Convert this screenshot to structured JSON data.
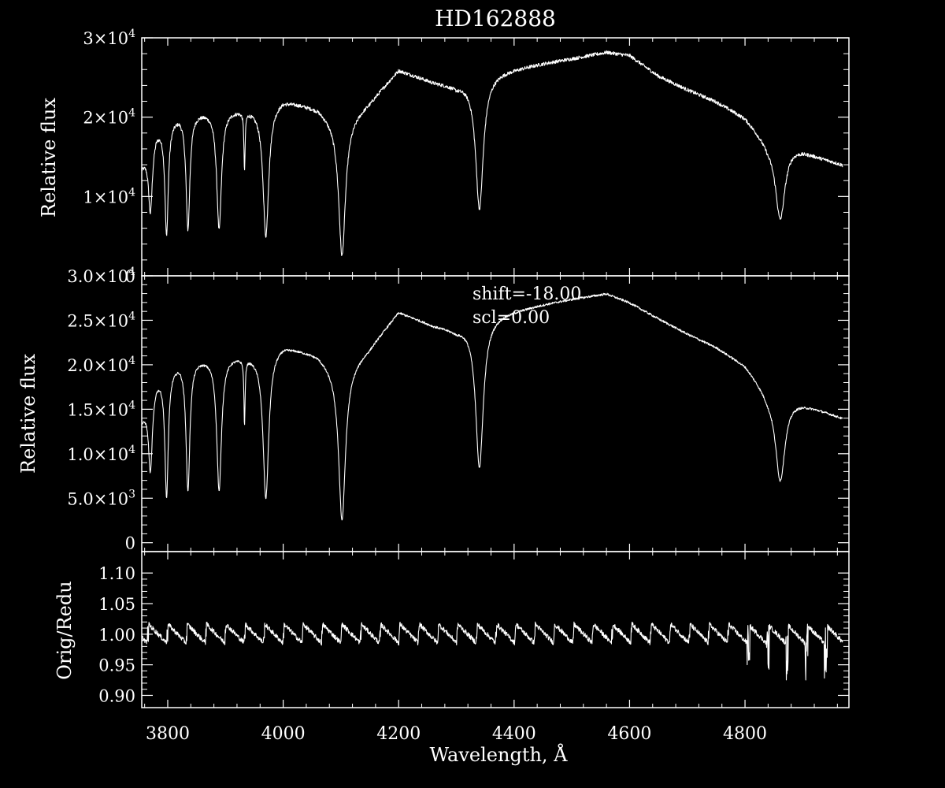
{
  "figure_title": "HD162888",
  "colors": {
    "background": "#000000",
    "foreground": "#ffffff"
  },
  "xaxis": {
    "label": "Wavelength, Å",
    "range": [
      3755,
      4980
    ],
    "ticks": [
      3800,
      4000,
      4200,
      4400,
      4600,
      4800
    ],
    "tick_labels": [
      "3800",
      "4000",
      "4200",
      "4400",
      "4600",
      "4800"
    ]
  },
  "chart_data": [
    {
      "type": "line",
      "ylabel": "Relative flux",
      "ylim": [
        0,
        30000
      ],
      "yticks": [
        {
          "v": 0,
          "m": "0",
          "e": ""
        },
        {
          "v": 10000,
          "m": "1×10",
          "e": "4"
        },
        {
          "v": 20000,
          "m": "2×10",
          "e": "4"
        },
        {
          "v": 30000,
          "m": "3×10",
          "e": "4"
        }
      ],
      "annotations": [],
      "spectrum": {
        "continuum": [
          [
            3755,
            14000
          ],
          [
            3780,
            18500
          ],
          [
            3820,
            20500
          ],
          [
            3880,
            21000
          ],
          [
            3950,
            21200
          ],
          [
            4000,
            22300
          ],
          [
            4060,
            21200
          ],
          [
            4100,
            19000
          ],
          [
            4150,
            22000
          ],
          [
            4200,
            26000
          ],
          [
            4260,
            24500
          ],
          [
            4300,
            24000
          ],
          [
            4340,
            25000
          ],
          [
            4380,
            25800
          ],
          [
            4450,
            26800
          ],
          [
            4500,
            27400
          ],
          [
            4560,
            28200
          ],
          [
            4600,
            27800
          ],
          [
            4650,
            25200
          ],
          [
            4700,
            23500
          ],
          [
            4750,
            22000
          ],
          [
            4800,
            20000
          ],
          [
            4840,
            16800
          ],
          [
            4880,
            16500
          ],
          [
            4930,
            15000
          ],
          [
            4970,
            14000
          ]
        ],
        "lines": [
          [
            3770,
            8500,
            4
          ],
          [
            3798,
            14000,
            3.5
          ],
          [
            3835,
            14500,
            4
          ],
          [
            3889,
            15000,
            5
          ],
          [
            3933,
            7500,
            1.2
          ],
          [
            3970,
            16500,
            6
          ],
          [
            4102,
            16500,
            7
          ],
          [
            4340,
            16500,
            8
          ],
          [
            4861,
            9500,
            10
          ]
        ],
        "noise": 220
      }
    },
    {
      "type": "line",
      "ylabel": "Relative flux",
      "ylim": [
        -1000,
        30000
      ],
      "yticks": [
        {
          "v": 0,
          "m": "0",
          "e": ""
        },
        {
          "v": 5000,
          "m": "5.0×10",
          "e": "3"
        },
        {
          "v": 10000,
          "m": "1.0×10",
          "e": "4"
        },
        {
          "v": 15000,
          "m": "1.5×10",
          "e": "4"
        },
        {
          "v": 20000,
          "m": "2.0×10",
          "e": "4"
        },
        {
          "v": 25000,
          "m": "2.5×10",
          "e": "4"
        },
        {
          "v": 30000,
          "m": "3.0×10",
          "e": "4"
        }
      ],
      "annotations": [
        "shift=-18.00",
        "scl=0.00"
      ],
      "spectrum": {
        "continuum": [
          [
            3755,
            14000
          ],
          [
            3780,
            18500
          ],
          [
            3820,
            20500
          ],
          [
            3880,
            21000
          ],
          [
            3950,
            21200
          ],
          [
            4000,
            22300
          ],
          [
            4060,
            21200
          ],
          [
            4100,
            19000
          ],
          [
            4150,
            22000
          ],
          [
            4200,
            26000
          ],
          [
            4260,
            24500
          ],
          [
            4300,
            24000
          ],
          [
            4340,
            25000
          ],
          [
            4380,
            25800
          ],
          [
            4450,
            26800
          ],
          [
            4500,
            27400
          ],
          [
            4560,
            28000
          ],
          [
            4600,
            27000
          ],
          [
            4650,
            25200
          ],
          [
            4700,
            23500
          ],
          [
            4750,
            22000
          ],
          [
            4800,
            20000
          ],
          [
            4840,
            16800
          ],
          [
            4880,
            16200
          ],
          [
            4930,
            15000
          ],
          [
            4970,
            14000
          ]
        ],
        "lines": [
          [
            3770,
            8500,
            4
          ],
          [
            3798,
            14000,
            3.5
          ],
          [
            3835,
            14500,
            4
          ],
          [
            3889,
            15000,
            5
          ],
          [
            3933,
            7500,
            1.2
          ],
          [
            3970,
            16500,
            6
          ],
          [
            4102,
            16500,
            7
          ],
          [
            4340,
            16500,
            8
          ],
          [
            4861,
            9500,
            10
          ]
        ],
        "noise": 120
      }
    },
    {
      "type": "line",
      "ylabel": "Orig/Redu",
      "ylim": [
        0.88,
        1.135
      ],
      "yticks": [
        {
          "v": 0.9,
          "m": "0.90",
          "e": ""
        },
        {
          "v": 0.95,
          "m": "0.95",
          "e": ""
        },
        {
          "v": 1.0,
          "m": "1.00",
          "e": ""
        },
        {
          "v": 1.05,
          "m": "1.05",
          "e": ""
        },
        {
          "v": 1.1,
          "m": "1.10",
          "e": ""
        }
      ],
      "annotations": [],
      "ratio": {
        "base": 1.0,
        "period": 33.5,
        "start": 3765,
        "amplitude": 0.018,
        "noise": 0.008
      }
    }
  ]
}
